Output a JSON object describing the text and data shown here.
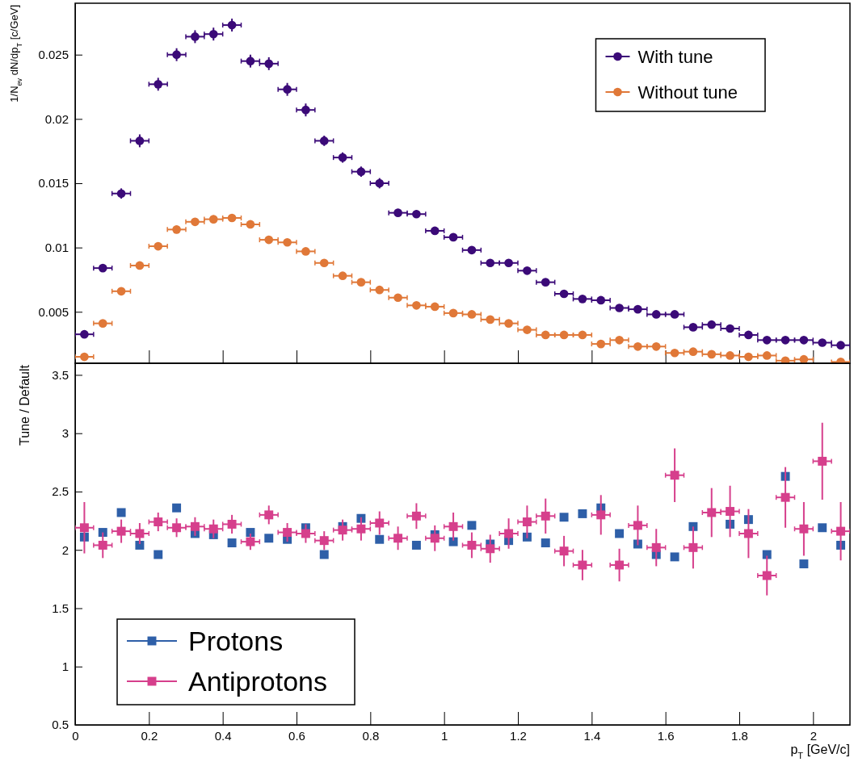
{
  "chart_data": [
    {
      "type": "scatter",
      "ylabel": "1/N$_{ev}$ dN/dp$_{T}$ [c/GeV]",
      "x": [
        0.025,
        0.075,
        0.125,
        0.175,
        0.225,
        0.275,
        0.325,
        0.375,
        0.425,
        0.475,
        0.525,
        0.575,
        0.625,
        0.675,
        0.725,
        0.775,
        0.825,
        0.875,
        0.925,
        0.975,
        1.025,
        1.075,
        1.125,
        1.175,
        1.225,
        1.275,
        1.325,
        1.375,
        1.425,
        1.475,
        1.525,
        1.575,
        1.625,
        1.675,
        1.725,
        1.775,
        1.825,
        1.875,
        1.925,
        1.975,
        2.025,
        2.075
      ],
      "series": [
        {
          "name": "With tune",
          "color": "#3b0a78",
          "values": [
            0.00325,
            0.0084,
            0.0142,
            0.0183,
            0.0227,
            0.025,
            0.0264,
            0.0266,
            0.0273,
            0.0245,
            0.0243,
            0.0223,
            0.0207,
            0.0183,
            0.017,
            0.0159,
            0.015,
            0.0127,
            0.0126,
            0.0113,
            0.0108,
            0.0098,
            0.0088,
            0.0088,
            0.0082,
            0.0073,
            0.0064,
            0.006,
            0.0059,
            0.0053,
            0.0052,
            0.0048,
            0.0048,
            0.0038,
            0.004,
            0.0037,
            0.0032,
            0.0028,
            0.0028,
            0.0028,
            0.0026,
            0.0024
          ],
          "errors": [
            null,
            null,
            0.0004,
            0.0005,
            0.0005,
            0.0005,
            0.0005,
            0.0005,
            0.0005,
            0.0005,
            0.0005,
            0.0005,
            0.0005,
            0.0004,
            0.0004,
            0.0004,
            0.0004,
            0.0003,
            0.0003,
            0.0003,
            0.0003,
            0.0003,
            null,
            null,
            null,
            null,
            null,
            null,
            null,
            null,
            null,
            null,
            null,
            null,
            null,
            null,
            null,
            null,
            null,
            null,
            null,
            null
          ],
          "xerrors": [
            0.025,
            0.025,
            0.025,
            0.025,
            0.025,
            0.025,
            0.025,
            0.025,
            0.025,
            0.025,
            0.025,
            0.025,
            0.025,
            0.025,
            0.025,
            0.025,
            0.025,
            0.025,
            0.025,
            0.025,
            0.025,
            0.025,
            0.025,
            0.025,
            0.025,
            0.025,
            0.025,
            0.025,
            0.025,
            0.025,
            0.025,
            0.025,
            0.025,
            0.025,
            0.025,
            0.025,
            0.025,
            0.025,
            0.025,
            0.025,
            0.025,
            0.025
          ]
        },
        {
          "name": "Without tune",
          "color": "#e07838",
          "values": [
            0.0015,
            0.0041,
            0.0066,
            0.0086,
            0.0101,
            0.0114,
            0.012,
            0.0122,
            0.0123,
            0.0118,
            0.0106,
            0.0104,
            0.0097,
            0.0088,
            0.0078,
            0.0073,
            0.0067,
            0.0061,
            0.0055,
            0.0054,
            0.0049,
            0.0048,
            0.0044,
            0.0041,
            0.0036,
            0.0032,
            0.0032,
            0.0032,
            0.0025,
            0.0028,
            0.0023,
            0.0023,
            0.0018,
            0.0019,
            0.0017,
            0.0016,
            0.0015,
            0.0016,
            0.0012,
            0.0013,
            null,
            0.0011
          ],
          "errors": [
            null,
            null,
            null,
            null,
            null,
            0.0003,
            0.0003,
            0.0003,
            0.0003,
            0.0003,
            null,
            null,
            null,
            null,
            null,
            null,
            null,
            null,
            null,
            null,
            null,
            null,
            null,
            null,
            null,
            null,
            null,
            null,
            null,
            null,
            null,
            null,
            null,
            null,
            null,
            null,
            null,
            null,
            null,
            null,
            null,
            null
          ],
          "xerrors": [
            0.025,
            0.025,
            0.025,
            0.025,
            0.025,
            0.025,
            0.025,
            0.025,
            0.025,
            0.025,
            0.025,
            0.025,
            0.025,
            0.025,
            0.025,
            0.025,
            0.025,
            0.025,
            0.025,
            0.025,
            0.025,
            0.025,
            0.025,
            0.025,
            0.025,
            0.025,
            0.025,
            0.025,
            0.025,
            0.025,
            0.025,
            0.025,
            0.025,
            0.025,
            0.025,
            0.025,
            0.025,
            0.025,
            0.025,
            0.025,
            null,
            0.025
          ]
        }
      ],
      "xlim": [
        0,
        2.1
      ],
      "xticks": [
        0,
        0.2,
        0.4,
        0.6,
        0.8,
        1,
        1.2,
        1.4,
        1.6,
        1.8,
        2
      ],
      "ylim": [
        0.001,
        0.029
      ],
      "yticks": [
        0.005,
        0.01,
        0.015,
        0.02,
        0.025
      ],
      "tick_labels": "y",
      "marker": "circle",
      "legend": "top right",
      "grid": false
    },
    {
      "type": "scatter",
      "xlabel": "p$_{T}$ [GeV/c]",
      "ylabel": "Tune / Default",
      "x": [
        0.025,
        0.075,
        0.125,
        0.175,
        0.225,
        0.275,
        0.325,
        0.375,
        0.425,
        0.475,
        0.525,
        0.575,
        0.625,
        0.675,
        0.725,
        0.775,
        0.825,
        0.875,
        0.925,
        0.975,
        1.025,
        1.075,
        1.125,
        1.175,
        1.225,
        1.275,
        1.325,
        1.375,
        1.425,
        1.475,
        1.525,
        1.575,
        1.625,
        1.675,
        1.725,
        1.775,
        1.825,
        1.875,
        1.925,
        1.975,
        2.025,
        2.075
      ],
      "series": [
        {
          "name": "Protons",
          "color": "#2e5fa8",
          "values": [
            2.11,
            2.15,
            2.32,
            2.04,
            1.96,
            2.36,
            2.14,
            2.13,
            2.06,
            2.15,
            2.1,
            2.09,
            2.19,
            1.96,
            2.2,
            2.27,
            2.09,
            null,
            2.04,
            2.13,
            2.07,
            2.21,
            2.05,
            2.08,
            2.11,
            2.06,
            2.28,
            2.31,
            2.36,
            2.14,
            2.05,
            1.96,
            1.94,
            2.2,
            null,
            2.22,
            2.26,
            1.96,
            2.63,
            1.88,
            2.19,
            2.04
          ]
        },
        {
          "name": "Antiprotons",
          "color": "#d63f8c",
          "values": [
            2.19,
            2.04,
            2.16,
            2.14,
            2.24,
            2.19,
            2.2,
            2.18,
            2.22,
            2.07,
            2.3,
            2.15,
            2.14,
            2.08,
            2.17,
            2.18,
            2.23,
            2.1,
            2.29,
            2.1,
            2.2,
            2.04,
            2.01,
            2.14,
            2.24,
            2.29,
            1.99,
            1.87,
            2.3,
            1.87,
            2.21,
            2.02,
            2.64,
            2.02,
            2.32,
            2.33,
            2.14,
            1.78,
            2.45,
            2.18,
            2.76,
            2.16
          ],
          "errors": [
            0.22,
            0.11,
            0.1,
            0.09,
            0.08,
            0.08,
            0.08,
            0.08,
            0.08,
            0.07,
            0.08,
            0.08,
            0.08,
            0.08,
            0.09,
            0.1,
            0.1,
            0.1,
            0.11,
            0.11,
            0.12,
            0.11,
            0.12,
            0.13,
            0.14,
            0.15,
            0.13,
            0.13,
            0.17,
            0.14,
            0.17,
            0.16,
            0.23,
            0.18,
            0.21,
            0.22,
            0.21,
            0.17,
            0.26,
            0.23,
            0.33,
            0.25
          ],
          "xerrors": [
            0.025,
            0.025,
            0.025,
            0.025,
            0.025,
            0.025,
            0.025,
            0.025,
            0.025,
            0.025,
            0.025,
            0.025,
            0.025,
            0.025,
            0.025,
            0.025,
            0.025,
            0.025,
            0.025,
            0.025,
            0.025,
            0.025,
            0.025,
            0.025,
            0.025,
            0.025,
            0.025,
            0.025,
            0.025,
            0.025,
            0.025,
            0.025,
            0.025,
            0.025,
            0.025,
            0.025,
            0.025,
            0.025,
            0.025,
            0.025,
            0.025,
            0.025
          ]
        }
      ],
      "xlim": [
        0,
        2.1
      ],
      "xticks": [
        0,
        0.2,
        0.4,
        0.6,
        0.8,
        1,
        1.2,
        1.4,
        1.6,
        1.8,
        2
      ],
      "ylim": [
        0.5,
        3.6
      ],
      "yticks": [
        0.5,
        1,
        1.5,
        2,
        2.5,
        3,
        3.5
      ],
      "marker": "square",
      "legend": "bottom left",
      "grid": false
    }
  ]
}
